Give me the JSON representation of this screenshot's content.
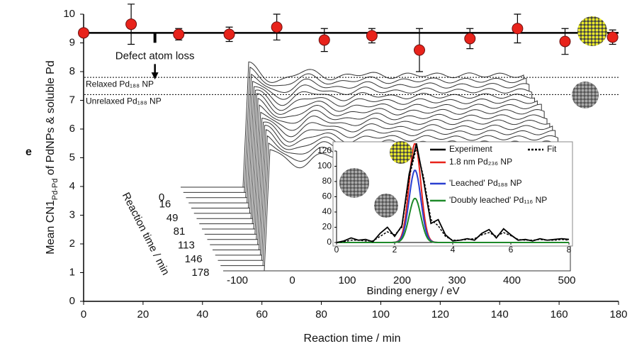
{
  "panel_label": "e",
  "chart_data": [
    {
      "type": "scatter",
      "xlabel": "Reaction time / min",
      "ylabel_parts": [
        "Mean CN1",
        "Pd-Pd",
        " of PdNPs & soluble Pd"
      ],
      "xlim": [
        0,
        180
      ],
      "ylim": [
        0,
        10
      ],
      "xticks": [
        0,
        20,
        40,
        60,
        80,
        100,
        120,
        140,
        160,
        180
      ],
      "yticks": [
        0,
        1,
        2,
        3,
        4,
        5,
        6,
        7,
        8,
        9,
        10
      ],
      "x": [
        0,
        16,
        32,
        49,
        65,
        81,
        97,
        113,
        130,
        146,
        162,
        178
      ],
      "series": [
        {
          "color": "#e8231b",
          "values": [
            9.35,
            9.65,
            9.3,
            9.3,
            9.55,
            9.1,
            9.25,
            8.75,
            9.15,
            9.5,
            9.05,
            9.2
          ],
          "errors": [
            0.1,
            0.7,
            0.2,
            0.25,
            0.45,
            0.4,
            0.25,
            0.75,
            0.35,
            0.5,
            0.45,
            0.25
          ]
        }
      ],
      "mean_line": 9.35,
      "reference_lines": [
        {
          "value": 7.8,
          "label": "Relaxed Pd₁₈₈ NP"
        },
        {
          "value": 7.2,
          "label": "Unrelaxed Pd₁₈₈ NP"
        }
      ],
      "annotation": {
        "text": "Defect atom loss",
        "x": 24
      }
    },
    {
      "type": "waterfall",
      "xlabel": "Binding energy / eV",
      "xlim": [
        -100,
        500
      ],
      "xticks": [
        -100,
        0,
        100,
        200,
        300,
        400,
        500
      ],
      "zlabel": "Reaction time / min",
      "zlim": [
        0,
        178
      ],
      "zticks": [
        0,
        16,
        49,
        81,
        113,
        146,
        178
      ]
    },
    {
      "type": "line",
      "xlim": [
        0,
        8
      ],
      "ylim": [
        0,
        120
      ],
      "xticks": [
        0,
        2,
        4,
        6,
        8
      ],
      "yticks": [
        0,
        20,
        40,
        60,
        80,
        100,
        120
      ],
      "x": [
        0,
        0.25,
        0.5,
        0.75,
        1,
        1.25,
        1.5,
        1.75,
        2,
        2.25,
        2.5,
        2.75,
        3,
        3.25,
        3.5,
        3.75,
        4,
        4.25,
        4.5,
        4.75,
        5,
        5.25,
        5.5,
        5.75,
        6,
        6.25,
        6.5,
        6.75,
        7,
        7.25,
        7.5,
        7.75,
        8
      ],
      "series": [
        {
          "name": "Experiment",
          "color": "#000000",
          "values": [
            0,
            2,
            6,
            3,
            4,
            1,
            12,
            20,
            8,
            22,
            90,
            130,
            80,
            25,
            30,
            10,
            2,
            3,
            5,
            3,
            12,
            17,
            6,
            18,
            10,
            3,
            4,
            2,
            5,
            3,
            4,
            5,
            4
          ]
        },
        {
          "name": "Fit",
          "color": "#000000",
          "values": [
            0,
            1,
            3,
            3,
            2,
            2,
            8,
            14,
            10,
            20,
            85,
            125,
            85,
            30,
            22,
            8,
            3,
            3,
            4,
            5,
            10,
            13,
            8,
            13,
            9,
            4,
            3,
            3,
            4,
            3,
            3,
            4,
            3
          ]
        }
      ],
      "peaks": [
        {
          "name": "1.8 nm Pd₂₃₆ NP",
          "color": "#e8231b",
          "center": 2.7,
          "height": 130
        },
        {
          "name": "'Leached' Pd₁₈₈ NP",
          "color": "#2a3fd0",
          "center": 2.7,
          "height": 95
        },
        {
          "name": "'Doubly leached' Pd₁₁₆ NP",
          "color": "#1f8a2a",
          "center": 2.7,
          "height": 58
        }
      ]
    }
  ]
}
